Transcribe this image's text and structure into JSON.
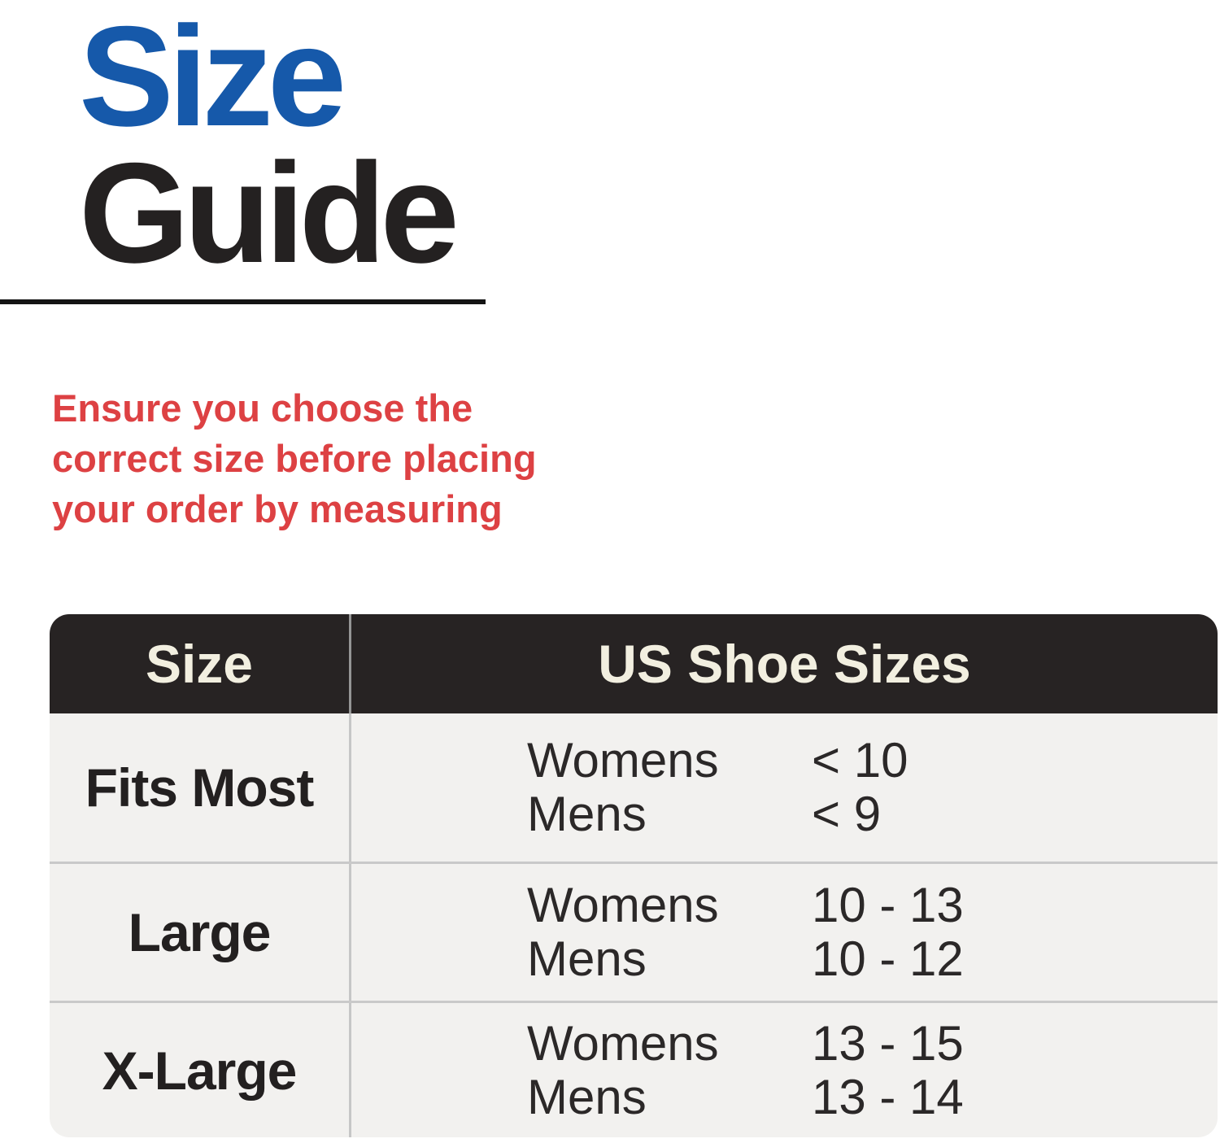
{
  "colors": {
    "title_blue": "#1659aa",
    "title_black": "#242121",
    "notice_red": "#dd4143",
    "table_header_bg": "#272323",
    "table_header_text": "#f2efe0",
    "table_row_bg": "#f2f1ef"
  },
  "title": {
    "line1": "Size",
    "line2": "Guide"
  },
  "notice": {
    "line1": "Ensure you choose the",
    "line2": "correct size before placing",
    "line3": "your order by measuring"
  },
  "size_table": {
    "header": {
      "col1": "Size",
      "col2": "US Shoe Sizes"
    },
    "rows": [
      {
        "size": "Fits Most",
        "entries": [
          {
            "label": "Womens",
            "value": "< 10"
          },
          {
            "label": "Mens",
            "value": "< 9"
          }
        ]
      },
      {
        "size": "Large",
        "entries": [
          {
            "label": "Womens",
            "value": "10 - 13"
          },
          {
            "label": "Mens",
            "value": "10 - 12"
          }
        ]
      },
      {
        "size": "X-Large",
        "entries": [
          {
            "label": "Womens",
            "value": "13 - 15"
          },
          {
            "label": "Mens",
            "value": "13 - 14"
          }
        ]
      }
    ]
  }
}
